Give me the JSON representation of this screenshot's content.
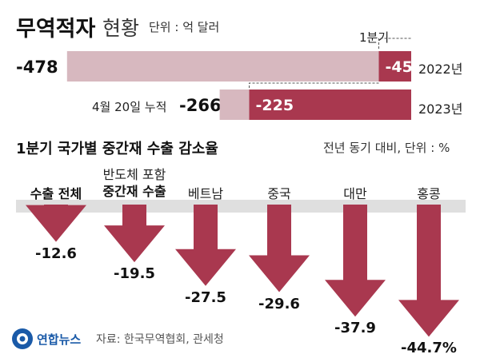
{
  "header": {
    "title_bold": "무역적자",
    "title_rest": "현황",
    "unit": "단위 : 억 달러"
  },
  "top_chart": {
    "q1_label": "1분기",
    "date_note": "4월 20일 누적",
    "rows": [
      {
        "year": "2022년",
        "total_label": "-478",
        "q1_label": "-45"
      },
      {
        "year": "2023년",
        "total_label": "-266",
        "q1_label": "-225"
      }
    ]
  },
  "bottom": {
    "title": "1분기 국가별 중간재 수출 감소율",
    "unit": "전년 동기 대비, 단위 : %"
  },
  "source": "자료: 한국무역협회, 관세청",
  "logo": "연합뉴스",
  "colors": {
    "accent": "#a9384f",
    "light": "#d7b8bf",
    "baseline": "#dfdfdf"
  },
  "chart_data": [
    {
      "type": "bar",
      "categories": [
        "2022년",
        "2023년"
      ],
      "series": [
        {
          "name": "",
          "values": [
            -478,
            -266
          ]
        },
        {
          "name": "1분기",
          "values": [
            -45,
            -225
          ]
        }
      ]
    },
    {
      "type": "bar",
      "categories": [
        "수출 전체",
        "반도체 포함 중간재 수출",
        "베트남",
        "중국",
        "대만",
        "홍콩"
      ],
      "category_lines": [
        [
          "수출 전체"
        ],
        [
          "반도체 포함",
          "중간재 수출"
        ],
        [
          "베트남"
        ],
        [
          "중국"
        ],
        [
          "대만"
        ],
        [
          "홍콩"
        ]
      ],
      "values": [
        -12.6,
        -19.5,
        -27.5,
        -29.6,
        -37.9,
        -44.7
      ],
      "value_labels": [
        "-12.6",
        "-19.5",
        "-27.5",
        "-29.6",
        "-37.9",
        "-44.7%"
      ]
    }
  ]
}
